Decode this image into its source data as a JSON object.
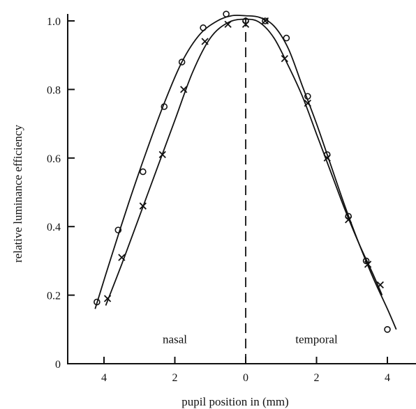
{
  "chart_data": {
    "type": "line",
    "title": "",
    "xlabel": "pupil position in (mm)",
    "ylabel": "relative luminance efficiency",
    "xlim": [
      -4.5,
      4.5
    ],
    "ylim": [
      0,
      1.0
    ],
    "x_tick_values": [
      -4,
      -2,
      0,
      2,
      4
    ],
    "x_tick_labels": [
      "4",
      "2",
      "0",
      "2",
      "4"
    ],
    "y_tick_values": [
      0,
      0.2,
      0.4,
      0.6,
      0.8,
      1.0
    ],
    "y_tick_labels": [
      "0",
      "0.2",
      "0.4",
      "0.6",
      "0.8",
      "1.0"
    ],
    "region_labels": [
      {
        "text": "nasal",
        "x": -2.0,
        "y": 0.06
      },
      {
        "text": "temporal",
        "x": 2.0,
        "y": 0.06
      }
    ],
    "center_divider_x": 0,
    "series": [
      {
        "marker": "circle",
        "x": [
          -4.2,
          -3.6,
          -2.9,
          -2.3,
          -1.8,
          -1.2,
          -0.55,
          0.0,
          0.55,
          1.15,
          1.75,
          2.3,
          2.9,
          3.4,
          4.0
        ],
        "y": [
          0.18,
          0.39,
          0.56,
          0.75,
          0.88,
          0.98,
          1.02,
          1.0,
          1.0,
          0.95,
          0.78,
          0.61,
          0.43,
          0.3,
          0.1
        ],
        "fit_x": [
          -4.25,
          -3.8,
          -3.3,
          -2.8,
          -2.3,
          -1.8,
          -1.3,
          -0.8,
          -0.4,
          0.0,
          0.4,
          0.8,
          1.2,
          1.6,
          2.0,
          2.4,
          2.8,
          3.2,
          3.6,
          4.0,
          4.25
        ],
        "fit_y": [
          0.16,
          0.31,
          0.47,
          0.62,
          0.76,
          0.88,
          0.96,
          1.0,
          1.015,
          1.015,
          1.01,
          0.985,
          0.92,
          0.81,
          0.7,
          0.58,
          0.46,
          0.35,
          0.25,
          0.16,
          0.1
        ]
      },
      {
        "marker": "cross",
        "x": [
          -3.9,
          -3.5,
          -2.9,
          -2.35,
          -1.75,
          -1.15,
          -0.5,
          0.0,
          0.55,
          1.1,
          1.75,
          2.3,
          2.9,
          3.45,
          3.8
        ],
        "y": [
          0.19,
          0.31,
          0.46,
          0.61,
          0.8,
          0.94,
          0.99,
          0.99,
          1.0,
          0.89,
          0.76,
          0.6,
          0.42,
          0.29,
          0.23
        ],
        "fit_x": [
          -3.95,
          -3.5,
          -3.0,
          -2.5,
          -2.0,
          -1.5,
          -1.0,
          -0.5,
          0.0,
          0.4,
          0.8,
          1.2,
          1.6,
          2.0,
          2.4,
          2.8,
          3.2,
          3.6,
          3.85
        ],
        "fit_y": [
          0.17,
          0.29,
          0.43,
          0.57,
          0.71,
          0.85,
          0.95,
          0.995,
          1.005,
          0.995,
          0.95,
          0.87,
          0.78,
          0.67,
          0.56,
          0.45,
          0.35,
          0.26,
          0.2
        ]
      }
    ]
  }
}
